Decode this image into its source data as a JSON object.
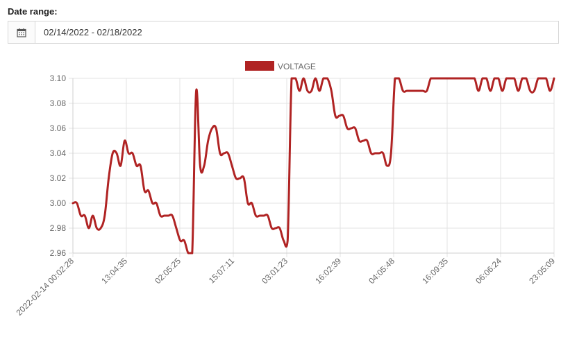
{
  "filter": {
    "label": "Date range:",
    "value": "02/14/2022 - 02/18/2022",
    "icon": "calendar-icon"
  },
  "chart_data": {
    "type": "line",
    "title": "",
    "xlabel": "",
    "ylabel": "",
    "legend": {
      "position": "top",
      "entries": [
        "VOLTAGE"
      ]
    },
    "ylim": [
      2.96,
      3.1
    ],
    "yticks": [
      2.96,
      2.98,
      3.0,
      3.02,
      3.04,
      3.06,
      3.08,
      3.1
    ],
    "ytick_labels": [
      "2.96",
      "2.98",
      "3.00",
      "3.02",
      "3.04",
      "3.06",
      "3.08",
      "3.10"
    ],
    "xtick_labels": [
      "2022-02-14 00:02:28",
      "13:04:35",
      "02:05:25",
      "15:07:11",
      "03:01:23",
      "16:02:39",
      "04:05:48",
      "16:09:35",
      "06:06:24",
      "23:05:09"
    ],
    "grid": true,
    "series": [
      {
        "name": "VOLTAGE",
        "color": "#b02323",
        "values": [
          3.0,
          3.0,
          2.99,
          2.99,
          2.98,
          2.99,
          2.98,
          2.98,
          2.99,
          3.02,
          3.04,
          3.04,
          3.03,
          3.05,
          3.04,
          3.04,
          3.03,
          3.03,
          3.01,
          3.01,
          3.0,
          3.0,
          2.99,
          2.99,
          2.99,
          2.99,
          2.98,
          2.97,
          2.97,
          2.96,
          2.96,
          3.09,
          3.03,
          3.03,
          3.05,
          3.06,
          3.06,
          3.04,
          3.04,
          3.04,
          3.03,
          3.02,
          3.02,
          3.02,
          3.0,
          3.0,
          2.99,
          2.99,
          2.99,
          2.99,
          2.98,
          2.98,
          2.98,
          2.97,
          2.97,
          3.1,
          3.1,
          3.09,
          3.1,
          3.09,
          3.09,
          3.1,
          3.09,
          3.1,
          3.1,
          3.09,
          3.07,
          3.07,
          3.07,
          3.06,
          3.06,
          3.06,
          3.05,
          3.05,
          3.05,
          3.04,
          3.04,
          3.04,
          3.04,
          3.03,
          3.04,
          3.1,
          3.1,
          3.09,
          3.09,
          3.09,
          3.09,
          3.09,
          3.09,
          3.09,
          3.1,
          3.1,
          3.1,
          3.1,
          3.1,
          3.1,
          3.1,
          3.1,
          3.1,
          3.1,
          3.1,
          3.1,
          3.09,
          3.1,
          3.1,
          3.09,
          3.1,
          3.1,
          3.09,
          3.1,
          3.1,
          3.1,
          3.09,
          3.1,
          3.1,
          3.09,
          3.09,
          3.1,
          3.1,
          3.1,
          3.09,
          3.1
        ]
      }
    ]
  }
}
